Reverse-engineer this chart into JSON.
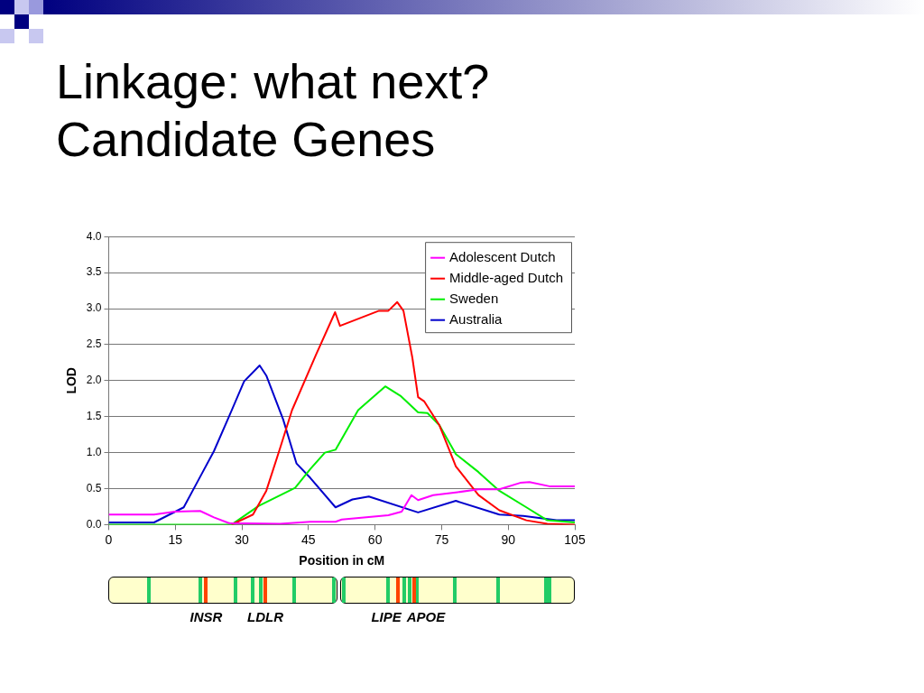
{
  "chart_data": {
    "type": "line",
    "title": "Linkage: what next?",
    "subtitle": "Candidate Genes",
    "xlabel": "Position in cM",
    "ylabel": "LOD",
    "xlim": [
      0,
      105
    ],
    "xticks": [
      0,
      15,
      30,
      45,
      60,
      75,
      90,
      105
    ],
    "ylim": [
      0,
      4
    ],
    "yticks": [
      {
        "value": 0,
        "label": "0.0"
      },
      {
        "value": 0.5,
        "label": "0.5"
      },
      {
        "value": 1,
        "label": "1.0"
      },
      {
        "value": 1.5,
        "label": "1.5"
      },
      {
        "value": 2,
        "label": "2.0"
      },
      {
        "value": 2.5,
        "label": "2.5"
      },
      {
        "value": 3,
        "label": "3.0"
      },
      {
        "value": 3.5,
        "label": "3.5"
      },
      {
        "value": 4,
        "label": "4.0"
      }
    ],
    "grid": "y",
    "legend": "top right",
    "marker": "none",
    "line_style": "solid",
    "series": [
      {
        "name": "Adolescent Dutch",
        "color": "#ff00ff",
        "x": [
          0,
          10.2,
          14.9,
          20.6,
          23.7,
          27.1,
          38.6,
          45.4,
          51.1,
          52.5,
          63,
          66,
          68.2,
          69.7,
          73.1,
          78.6,
          83.3,
          88,
          92.7,
          94.8,
          99.5,
          105
        ],
        "values": [
          0.14,
          0.14,
          0.18,
          0.19,
          0.1,
          0.02,
          0.01,
          0.04,
          0.04,
          0.07,
          0.13,
          0.18,
          0.41,
          0.34,
          0.41,
          0.45,
          0.49,
          0.49,
          0.58,
          0.59,
          0.53,
          0.53
        ]
      },
      {
        "name": "Middle-aged Dutch",
        "color": "#ff0000",
        "x": [
          27.7,
          32.5,
          35.5,
          38.6,
          41.3,
          46.7,
          51,
          52.1,
          60.9,
          63,
          65,
          66.4,
          68.4,
          69.7,
          71.1,
          74.5,
          78.2,
          83.3,
          88,
          94.1,
          98.8,
          105
        ],
        "values": [
          0,
          0.14,
          0.47,
          1.06,
          1.59,
          2.36,
          2.95,
          2.76,
          2.97,
          2.97,
          3.09,
          2.97,
          2.32,
          1.77,
          1.71,
          1.38,
          0.81,
          0.41,
          0.2,
          0.06,
          0.01,
          0
        ]
      },
      {
        "name": "Sweden",
        "color": "#00ee00",
        "x": [
          0,
          27.7,
          33.8,
          42,
          45.4,
          48.7,
          51.1,
          56.2,
          62.3,
          65.7,
          69.7,
          71.8,
          74.5,
          78.2,
          83.3,
          88,
          94.1,
          98.8,
          105
        ],
        "values": [
          0,
          0,
          0.26,
          0.51,
          0.77,
          1,
          1.04,
          1.59,
          1.92,
          1.79,
          1.56,
          1.55,
          1.38,
          0.98,
          0.73,
          0.47,
          0.24,
          0.06,
          0.03
        ]
      },
      {
        "name": "Australia",
        "color": "#0000cc",
        "x": [
          0,
          10.2,
          16.9,
          20.3,
          23.7,
          27.1,
          30.5,
          34,
          35.5,
          39.3,
          42.3,
          45.4,
          51.1,
          54.9,
          58.6,
          69.7,
          78.2,
          88,
          93.4,
          100.9,
          105
        ],
        "values": [
          0.03,
          0.03,
          0.24,
          0.63,
          1.02,
          1.5,
          1.99,
          2.21,
          2.07,
          1.46,
          0.85,
          0.65,
          0.24,
          0.35,
          0.39,
          0.17,
          0.33,
          0.14,
          0.12,
          0.06,
          0.06
        ]
      }
    ],
    "annotations": [
      "INSR",
      "LDLR",
      "LIPE",
      "APOE"
    ]
  }
}
